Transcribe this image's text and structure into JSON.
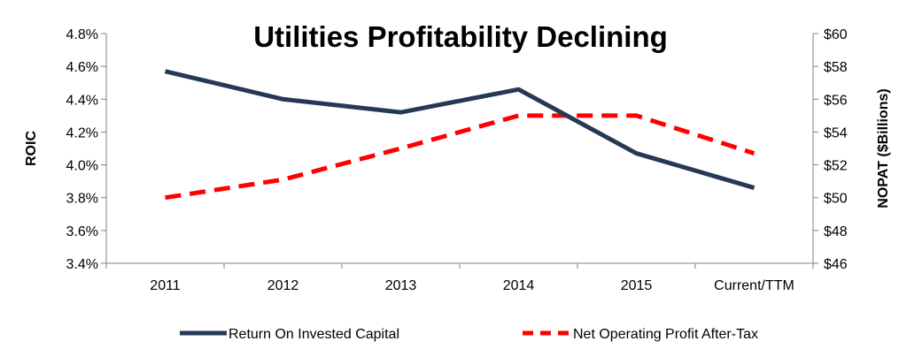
{
  "chart_data": {
    "type": "line",
    "title": "Utilities Profitability Declining",
    "categories": [
      "2011",
      "2012",
      "2013",
      "2014",
      "2015",
      "Current/TTM"
    ],
    "y_left": {
      "label": "ROIC",
      "ticks": [
        "3.4%",
        "3.6%",
        "3.8%",
        "4.0%",
        "4.2%",
        "4.4%",
        "4.6%",
        "4.8%"
      ],
      "range": [
        3.4,
        4.8
      ]
    },
    "y_right": {
      "label": "NOPAT ($Billions)",
      "ticks": [
        "$46",
        "$48",
        "$50",
        "$52",
        "$54",
        "$56",
        "$58",
        "$60"
      ],
      "range": [
        46,
        60
      ]
    },
    "series": [
      {
        "name": "Return On Invested Capital",
        "axis": "left",
        "style": "solid",
        "color": "#253956",
        "values": [
          4.57,
          4.4,
          4.32,
          4.46,
          4.07,
          3.86
        ]
      },
      {
        "name": "Net Operating Profit After-Tax",
        "axis": "right",
        "style": "dashed",
        "color": "#ff0000",
        "values": [
          50.0,
          51.1,
          53.0,
          55.0,
          55.0,
          52.7
        ]
      }
    ],
    "legend": "bottom",
    "grid": false
  }
}
